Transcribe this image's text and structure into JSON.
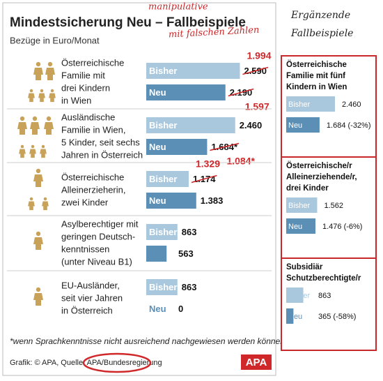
{
  "chart_data": [
    {
      "type": "hbar",
      "title": "Mindestsicherung Neu – Fallbeispiele",
      "subtitle": "Bezüge in Euro/Monat",
      "categories": [
        [
          "Österreichische",
          "Familie mit",
          "drei Kindern",
          "in Wien"
        ],
        [
          "Ausländische",
          "Familie in Wien,",
          "5 Kinder, seit sechs",
          "Jahren in Österreich"
        ],
        [
          "Österreichische",
          "Alleinerzieherin,",
          "zwei Kinder"
        ],
        [
          "Asylberechtiger mit",
          "geringen Deutsch-",
          "kenntnissen",
          "(unter Niveau B1)"
        ],
        [
          "EU-Ausländer,",
          "seit vier Jahren",
          "in Österreich"
        ]
      ],
      "series": [
        {
          "name": "Bisher",
          "color": "#a9c8de",
          "values": [
            2590,
            2460,
            1174,
            863,
            863
          ],
          "value_labels": [
            "2.590",
            "2.460",
            "1.174",
            "863",
            "863"
          ],
          "corrected_values": [
            1994,
            null,
            1329,
            null,
            null
          ],
          "corrected_value_labels": [
            "1.994",
            null,
            "1.329",
            null,
            null
          ]
        },
        {
          "name": "Neu",
          "color": "#5b8fb6",
          "values": [
            2190,
            1684,
            1383,
            563,
            0
          ],
          "value_labels": [
            "2.190",
            "1.684*",
            "1.383",
            "563",
            "0"
          ],
          "corrected_values": [
            1597,
            1084,
            null,
            null,
            null
          ],
          "corrected_value_labels": [
            "1.597",
            "1.084*",
            null,
            null,
            null
          ]
        }
      ],
      "footnote": "*wenn Sprachkenntnisse nicht ausreichend nachgewiesen werden können",
      "source": "Grafik: © APA, Quelle: APA/Bundesregierung",
      "logo": "APA"
    },
    {
      "type": "hbar",
      "title": [
        "Österreichische",
        "Familie mit fünf",
        "Kindern in Wien"
      ],
      "series": [
        {
          "name": "Bisher",
          "color": "#a9c8de",
          "values": [
            2460
          ],
          "value_labels": [
            "2.460"
          ]
        },
        {
          "name": "Neu",
          "color": "#5b8fb6",
          "values": [
            1684
          ],
          "value_labels": [
            "1.684 (-32%)"
          ]
        }
      ]
    },
    {
      "type": "hbar",
      "title": [
        "Österreichische/r",
        "Alleinerziehende/r,",
        "drei Kinder"
      ],
      "series": [
        {
          "name": "Bisher",
          "color": "#a9c8de",
          "values": [
            1562
          ],
          "value_labels": [
            "1.562"
          ]
        },
        {
          "name": "Neu",
          "color": "#5b8fb6",
          "values": [
            1476
          ],
          "value_labels": [
            "1.476 (-6%)"
          ]
        }
      ]
    },
    {
      "type": "hbar",
      "title": [
        "Subsidiär",
        "Schutzberechtigte/r"
      ],
      "series": [
        {
          "name": "Bisher",
          "color": "#a9c8de",
          "values": [
            863
          ],
          "value_labels": [
            "863"
          ]
        },
        {
          "name": "Neu",
          "color": "#5b8fb6",
          "values": [
            365
          ],
          "value_labels": [
            "365 (-58%)"
          ]
        }
      ]
    }
  ],
  "annotations": {
    "overlay_1": "manipulative",
    "overlay_2": "mit falschen Zahlen",
    "side_heading": [
      "Ergänzende",
      "Fallbeispiele"
    ]
  }
}
